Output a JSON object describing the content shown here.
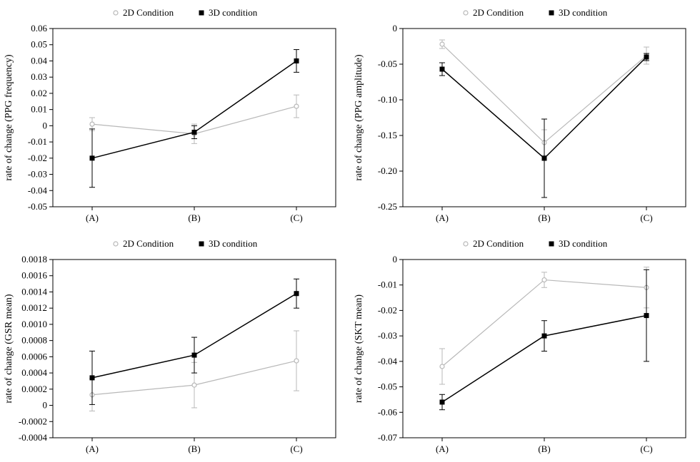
{
  "legend": {
    "series2d": {
      "label": "2D Condition",
      "marker": "open-circle",
      "marker_fill": "#ffffff",
      "stroke": "#b8b8b8",
      "size": 6
    },
    "series3d": {
      "label": "3D condition",
      "marker": "filled-square",
      "marker_fill": "#000000",
      "stroke": "#000000",
      "size": 6
    }
  },
  "global": {
    "background": "#ffffff",
    "axis_color": "#000000",
    "font_family": "Times New Roman",
    "tick_fontsize": 13,
    "ylabel_fontsize": 14,
    "line_width_2d": 1.2,
    "line_width_3d": 1.5,
    "error_cap_halfwidth": 4
  },
  "panels": [
    {
      "id": "ppg-frequency",
      "ylabel": "rate of change (PPG frequency)",
      "x_categories": [
        "(A)",
        "(B)",
        "(C)"
      ],
      "ylim": [
        -0.05,
        0.06
      ],
      "ytick_step": 0.01,
      "y_decimals": 2,
      "series": {
        "2d": {
          "values": [
            0.001,
            -0.005,
            0.012
          ],
          "err": [
            0.004,
            0.006,
            0.007
          ]
        },
        "3d": {
          "values": [
            -0.02,
            -0.004,
            0.04
          ],
          "err": [
            0.018,
            0.004,
            0.007
          ]
        }
      }
    },
    {
      "id": "ppg-amplitude",
      "ylabel": "rate of change (PPG amplitude)",
      "x_categories": [
        "(A)",
        "(B)",
        "(C)"
      ],
      "ylim": [
        -0.25,
        0.0
      ],
      "ytick_step": 0.05,
      "y_decimals": 2,
      "series": {
        "2d": {
          "values": [
            -0.022,
            -0.16,
            -0.038
          ],
          "err": [
            0.006,
            0.018,
            0.012
          ]
        },
        "3d": {
          "values": [
            -0.057,
            -0.182,
            -0.04
          ],
          "err": [
            0.009,
            0.055,
            0.005
          ]
        }
      }
    },
    {
      "id": "gsr-mean",
      "ylabel": "rate of change (GSR mean)",
      "x_categories": [
        "(A)",
        "(B)",
        "(C)"
      ],
      "ylim": [
        -0.0004,
        0.0018
      ],
      "ytick_step": 0.0002,
      "y_decimals": 4,
      "series": {
        "2d": {
          "values": [
            0.00013,
            0.00025,
            0.00055
          ],
          "err": [
            0.0002,
            0.00028,
            0.00037
          ]
        },
        "3d": {
          "values": [
            0.00034,
            0.00062,
            0.00138
          ],
          "err": [
            0.00033,
            0.00022,
            0.00018
          ]
        }
      }
    },
    {
      "id": "skt-mean",
      "ylabel": "rate of change (SKT mean)",
      "x_categories": [
        "(A)",
        "(B)",
        "(C)"
      ],
      "ylim": [
        -0.07,
        0.0
      ],
      "ytick_step": 0.01,
      "y_decimals": 2,
      "series": {
        "2d": {
          "values": [
            -0.042,
            -0.008,
            -0.011
          ],
          "err": [
            0.007,
            0.003,
            0.008
          ]
        },
        "3d": {
          "values": [
            -0.056,
            -0.03,
            -0.022
          ],
          "err": [
            0.003,
            0.006,
            0.018
          ]
        }
      }
    }
  ]
}
